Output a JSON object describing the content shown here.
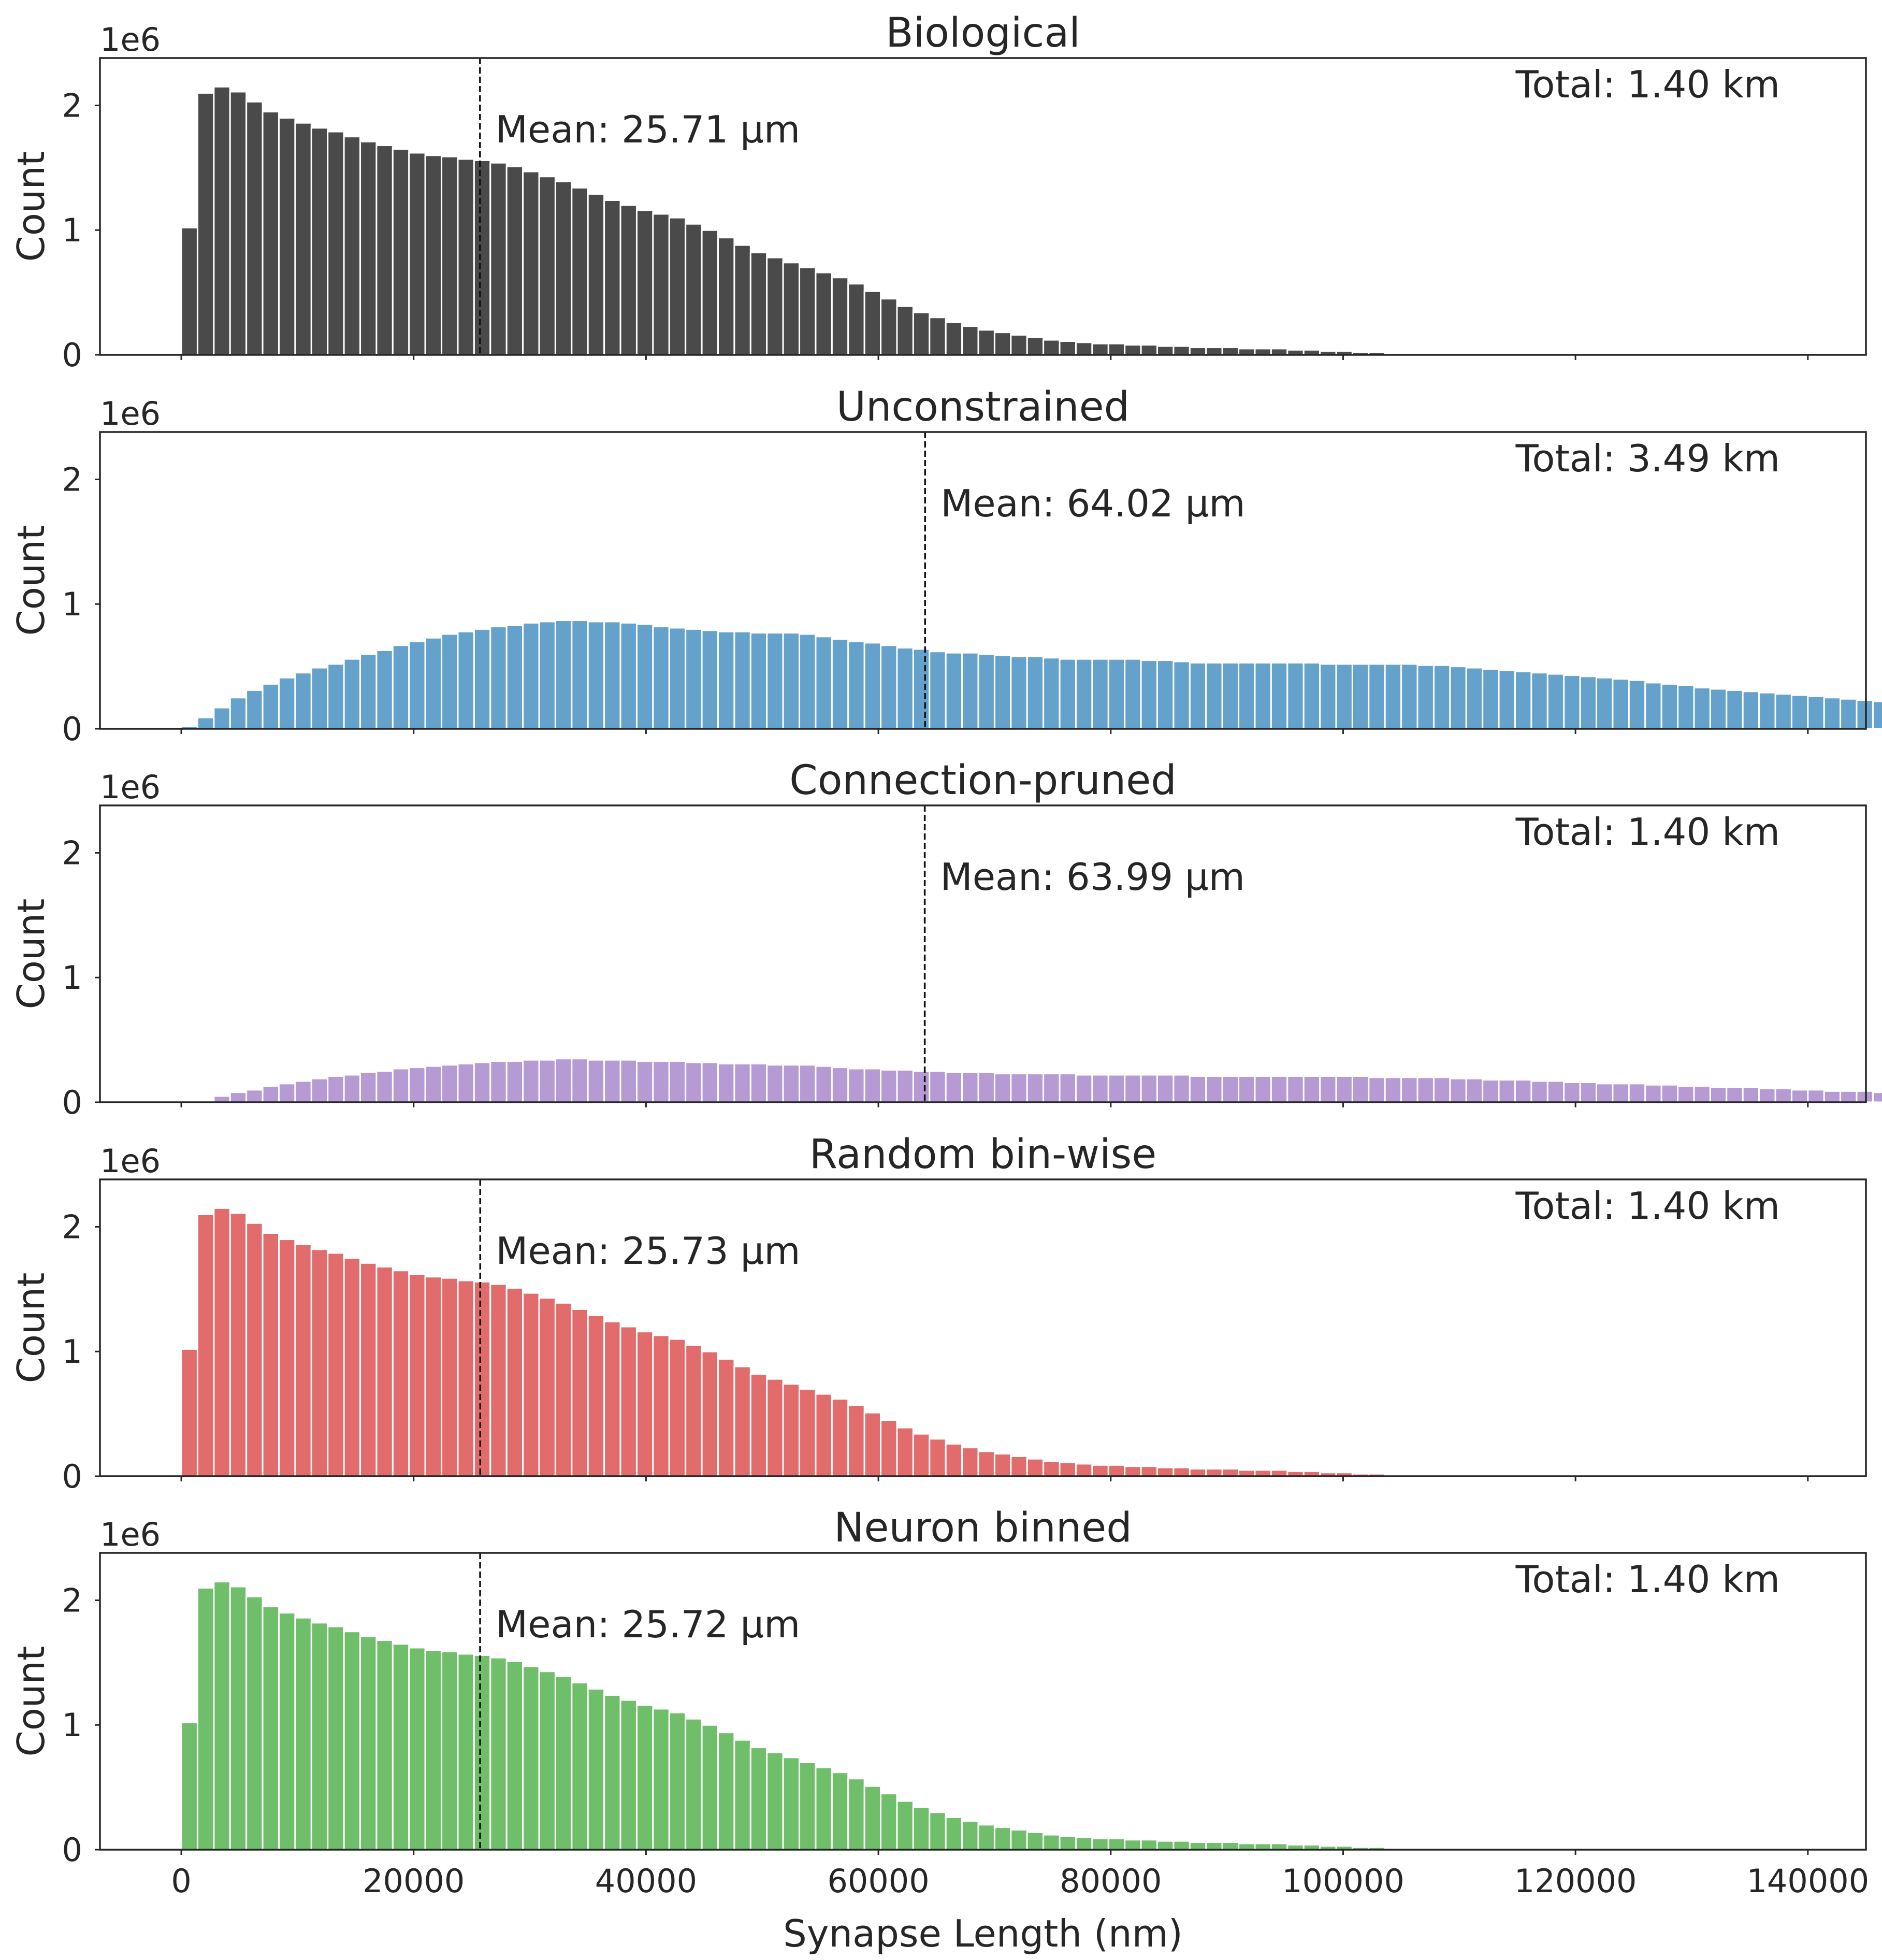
{
  "chart_data": {
    "type": "bar",
    "xlabel": "Synapse Length (nm)",
    "ylabel": "Count",
    "y_offset_label": "1e6",
    "xlim": [
      -7000,
      145000
    ],
    "ylim": [
      0,
      2.38
    ],
    "x_ticks": [
      0,
      20000,
      40000,
      60000,
      80000,
      100000,
      120000,
      140000
    ],
    "x_tick_labels": [
      "0",
      "20000",
      "40000",
      "60000",
      "80000",
      "100000",
      "120000",
      "140000"
    ],
    "y_ticks": [
      0,
      1,
      2
    ],
    "y_tick_labels": [
      "0",
      "1",
      "2"
    ],
    "bin_start": 0,
    "bin_width": 1400,
    "grid": false,
    "panels": [
      {
        "title": "Biological",
        "color": "#4a4a4a",
        "mean_x": 25710,
        "mean_label": "Mean: 25.71 μm",
        "total_label": "Total: 1.40 km",
        "values": [
          1.02,
          2.1,
          2.15,
          2.11,
          2.03,
          1.95,
          1.9,
          1.86,
          1.82,
          1.79,
          1.75,
          1.71,
          1.68,
          1.65,
          1.62,
          1.6,
          1.59,
          1.57,
          1.56,
          1.54,
          1.51,
          1.47,
          1.43,
          1.39,
          1.34,
          1.29,
          1.24,
          1.2,
          1.16,
          1.13,
          1.1,
          1.05,
          1.0,
          0.94,
          0.88,
          0.82,
          0.78,
          0.74,
          0.7,
          0.66,
          0.62,
          0.57,
          0.51,
          0.45,
          0.39,
          0.34,
          0.3,
          0.26,
          0.23,
          0.2,
          0.18,
          0.16,
          0.14,
          0.12,
          0.11,
          0.1,
          0.09,
          0.09,
          0.08,
          0.08,
          0.07,
          0.07,
          0.06,
          0.06,
          0.06,
          0.05,
          0.05,
          0.05,
          0.04,
          0.04,
          0.03,
          0.03,
          0.02,
          0.02,
          0.01,
          0.01,
          0.01,
          0.008,
          0.006,
          0.004,
          0.003,
          0.002,
          0.002,
          0.001,
          0.001,
          0.001,
          0.001,
          0.0005,
          0.0005,
          0.0005,
          0.0005,
          0.0005
        ]
      },
      {
        "title": "Unconstrained",
        "color": "#64a2cc",
        "mean_x": 64020,
        "mean_label": "Mean: 64.02 μm",
        "total_label": "Total: 3.49 km",
        "values": [
          0.02,
          0.09,
          0.17,
          0.25,
          0.31,
          0.36,
          0.41,
          0.45,
          0.49,
          0.52,
          0.56,
          0.6,
          0.63,
          0.67,
          0.7,
          0.73,
          0.76,
          0.78,
          0.8,
          0.82,
          0.83,
          0.85,
          0.86,
          0.87,
          0.87,
          0.86,
          0.86,
          0.85,
          0.84,
          0.82,
          0.81,
          0.8,
          0.79,
          0.78,
          0.78,
          0.77,
          0.77,
          0.77,
          0.76,
          0.74,
          0.72,
          0.7,
          0.69,
          0.67,
          0.65,
          0.64,
          0.62,
          0.61,
          0.61,
          0.6,
          0.59,
          0.58,
          0.58,
          0.57,
          0.56,
          0.56,
          0.56,
          0.56,
          0.56,
          0.55,
          0.55,
          0.54,
          0.53,
          0.53,
          0.53,
          0.53,
          0.53,
          0.53,
          0.53,
          0.53,
          0.52,
          0.52,
          0.52,
          0.52,
          0.52,
          0.52,
          0.51,
          0.51,
          0.5,
          0.49,
          0.48,
          0.47,
          0.46,
          0.45,
          0.44,
          0.43,
          0.42,
          0.41,
          0.4,
          0.39,
          0.37,
          0.36,
          0.35,
          0.33,
          0.32,
          0.31,
          0.3,
          0.29,
          0.28,
          0.27,
          0.26,
          0.25,
          0.24,
          0.23,
          0.22,
          0.21,
          0.2,
          0.2,
          0.19,
          0.18,
          0.17
        ]
      },
      {
        "title": "Connection-pruned",
        "color": "#b59ad4",
        "mean_x": 63990,
        "mean_label": "Mean: 63.99 μm",
        "total_label": "Total: 1.40 km",
        "values": [
          0.0,
          0.01,
          0.05,
          0.08,
          0.1,
          0.13,
          0.15,
          0.17,
          0.19,
          0.21,
          0.22,
          0.24,
          0.25,
          0.27,
          0.28,
          0.29,
          0.3,
          0.31,
          0.32,
          0.33,
          0.33,
          0.34,
          0.34,
          0.35,
          0.35,
          0.34,
          0.34,
          0.34,
          0.33,
          0.33,
          0.33,
          0.32,
          0.32,
          0.31,
          0.31,
          0.31,
          0.3,
          0.3,
          0.3,
          0.29,
          0.28,
          0.27,
          0.27,
          0.26,
          0.26,
          0.25,
          0.25,
          0.24,
          0.24,
          0.24,
          0.23,
          0.23,
          0.23,
          0.23,
          0.23,
          0.22,
          0.22,
          0.22,
          0.22,
          0.22,
          0.22,
          0.22,
          0.21,
          0.21,
          0.21,
          0.21,
          0.21,
          0.21,
          0.21,
          0.21,
          0.21,
          0.21,
          0.21,
          0.2,
          0.2,
          0.2,
          0.2,
          0.2,
          0.19,
          0.19,
          0.18,
          0.18,
          0.18,
          0.17,
          0.17,
          0.16,
          0.16,
          0.15,
          0.15,
          0.15,
          0.14,
          0.14,
          0.13,
          0.13,
          0.12,
          0.12,
          0.12,
          0.11,
          0.11,
          0.1,
          0.1,
          0.09,
          0.09,
          0.09,
          0.08,
          0.08,
          0.08,
          0.07,
          0.07,
          0.07,
          0.06
        ]
      },
      {
        "title": "Random bin-wise",
        "color": "#e26b6b",
        "mean_x": 25730,
        "mean_label": "Mean: 25.73 μm",
        "total_label": "Total: 1.40 km",
        "values": [
          1.02,
          2.1,
          2.15,
          2.11,
          2.03,
          1.95,
          1.9,
          1.86,
          1.82,
          1.79,
          1.75,
          1.71,
          1.68,
          1.65,
          1.62,
          1.6,
          1.59,
          1.57,
          1.56,
          1.54,
          1.51,
          1.47,
          1.43,
          1.39,
          1.34,
          1.29,
          1.24,
          1.2,
          1.16,
          1.13,
          1.1,
          1.05,
          1.0,
          0.94,
          0.88,
          0.82,
          0.78,
          0.74,
          0.7,
          0.66,
          0.62,
          0.57,
          0.51,
          0.45,
          0.39,
          0.34,
          0.3,
          0.26,
          0.23,
          0.2,
          0.18,
          0.16,
          0.14,
          0.12,
          0.11,
          0.1,
          0.09,
          0.09,
          0.08,
          0.08,
          0.07,
          0.07,
          0.06,
          0.06,
          0.06,
          0.05,
          0.05,
          0.05,
          0.04,
          0.04,
          0.03,
          0.03,
          0.02,
          0.02,
          0.01,
          0.01,
          0.01,
          0.008,
          0.006,
          0.004,
          0.003,
          0.002,
          0.002,
          0.001,
          0.001,
          0.001,
          0.001,
          0.0005,
          0.0005,
          0.0005,
          0.0005,
          0.0005
        ]
      },
      {
        "title": "Neuron binned",
        "color": "#6fbf6a",
        "mean_x": 25720,
        "mean_label": "Mean: 25.72 μm",
        "total_label": "Total: 1.40 km",
        "values": [
          1.02,
          2.1,
          2.15,
          2.11,
          2.03,
          1.95,
          1.9,
          1.86,
          1.82,
          1.79,
          1.75,
          1.71,
          1.68,
          1.65,
          1.62,
          1.6,
          1.59,
          1.57,
          1.56,
          1.54,
          1.51,
          1.47,
          1.43,
          1.39,
          1.34,
          1.29,
          1.24,
          1.2,
          1.16,
          1.13,
          1.1,
          1.05,
          1.0,
          0.94,
          0.88,
          0.82,
          0.78,
          0.74,
          0.7,
          0.66,
          0.62,
          0.57,
          0.51,
          0.45,
          0.39,
          0.34,
          0.3,
          0.26,
          0.23,
          0.2,
          0.18,
          0.16,
          0.14,
          0.12,
          0.11,
          0.1,
          0.09,
          0.09,
          0.08,
          0.08,
          0.07,
          0.07,
          0.06,
          0.06,
          0.06,
          0.05,
          0.05,
          0.05,
          0.04,
          0.04,
          0.03,
          0.03,
          0.02,
          0.02,
          0.01,
          0.01,
          0.01,
          0.008,
          0.006,
          0.004,
          0.003,
          0.002,
          0.002,
          0.001,
          0.001,
          0.001,
          0.001,
          0.0005,
          0.0005,
          0.0005,
          0.0005,
          0.0005
        ]
      }
    ]
  }
}
